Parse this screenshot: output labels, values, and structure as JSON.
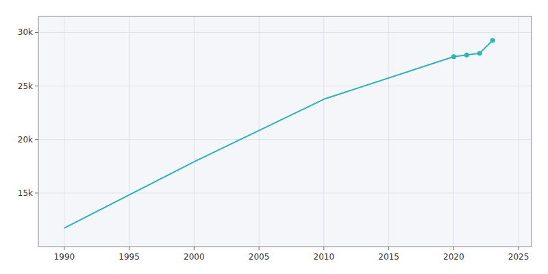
{
  "chart_data": {
    "type": "line",
    "x": [
      1990,
      2000,
      2010,
      2020,
      2021,
      2022,
      2023
    ],
    "series": [
      {
        "values": [
          11739,
          17924,
          23770,
          27742,
          27900,
          28068,
          29261
        ],
        "color": "#2ab5b5"
      },
      {
        "type": "scatter",
        "marker": "circle",
        "x": [
          2020,
          2021,
          2022,
          2023
        ],
        "values": [
          27742,
          27900,
          28068,
          29261
        ],
        "color": "#2ab5b5"
      }
    ],
    "xlim": [
      1988,
      2026
    ],
    "ylim": [
      10000,
      31500
    ],
    "xticks": [
      1990,
      1995,
      2000,
      2005,
      2010,
      2015,
      2020,
      2025
    ],
    "yticks": [
      {
        "value": 15000,
        "label": "15k"
      },
      {
        "value": 20000,
        "label": "20k"
      },
      {
        "value": 25000,
        "label": "25k"
      },
      {
        "value": 30000,
        "label": "30k"
      }
    ],
    "grid": true
  }
}
